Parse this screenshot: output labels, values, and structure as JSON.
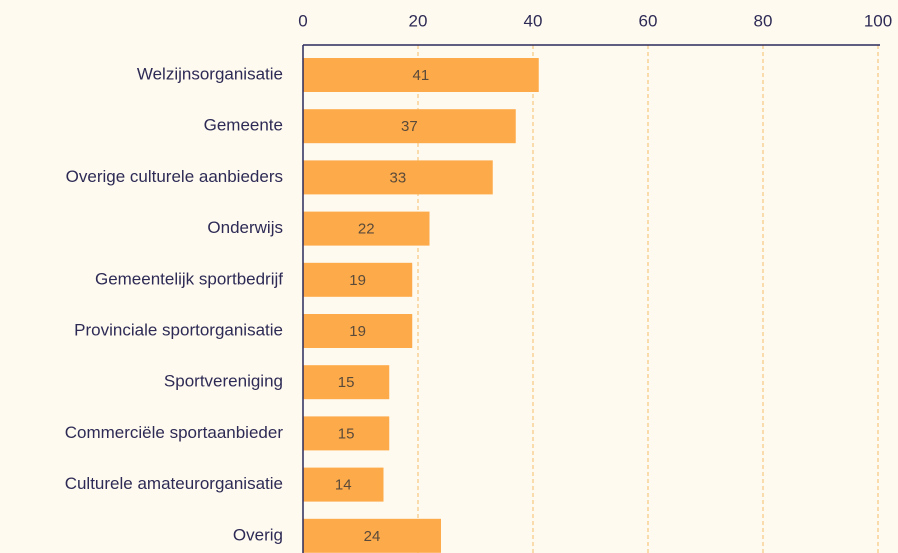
{
  "chart_data": {
    "type": "bar",
    "orientation": "horizontal",
    "categories": [
      "Welzijnsorganisatie",
      "Gemeente",
      "Overige culturele aanbieders",
      "Onderwijs",
      "Gemeentelijk sportbedrijf",
      "Provinciale sportorganisatie",
      "Sportvereniging",
      "Commerciële sportaanbieder",
      "Culturele amateurorganisatie",
      "Overig"
    ],
    "values": [
      41,
      37,
      33,
      22,
      19,
      19,
      15,
      15,
      14,
      24
    ],
    "color": "#fdab4a",
    "xlim": [
      0,
      100
    ],
    "xticks": [
      0,
      20,
      40,
      60,
      80,
      100
    ],
    "grid": true
  }
}
